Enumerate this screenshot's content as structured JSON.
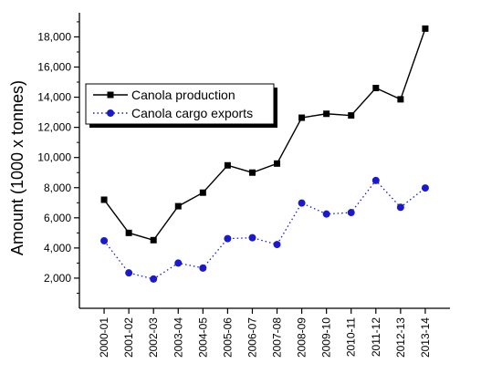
{
  "chart_data": {
    "type": "line",
    "title": "",
    "xlabel": "",
    "ylabel": "Amount (1000 x tonnes)",
    "categories": [
      "2000-01",
      "2001-02",
      "2002-03",
      "2003-04",
      "2004-05",
      "2005-06",
      "2006-07",
      "2007-08",
      "2008-09",
      "2009-10",
      "2010-11",
      "2011-12",
      "2012-13",
      "2013-14"
    ],
    "ylim": [
      0,
      19600
    ],
    "yticks": [
      2000,
      4000,
      6000,
      8000,
      10000,
      12000,
      14000,
      16000,
      18000
    ],
    "ytick_labels": [
      "2,000",
      "4,000",
      "6,000",
      "8,000",
      "10,000",
      "12,000",
      "14,000",
      "16,000",
      "18,000"
    ],
    "grid": false,
    "legend_position": "upper-left",
    "series": [
      {
        "name": "Canola production",
        "color": "#000000",
        "marker": "square",
        "line_style": "solid",
        "values": [
          7200,
          5000,
          4520,
          6770,
          7670,
          9480,
          9000,
          9600,
          12640,
          12900,
          12790,
          14610,
          13860,
          18550
        ]
      },
      {
        "name": "Canola cargo exports",
        "color": "#1a1acc",
        "marker": "circle",
        "line_style": "dotted",
        "values": [
          4480,
          2350,
          1940,
          3000,
          2670,
          4620,
          4680,
          4230,
          6980,
          6250,
          6350,
          8480,
          6700,
          7980
        ]
      }
    ]
  }
}
